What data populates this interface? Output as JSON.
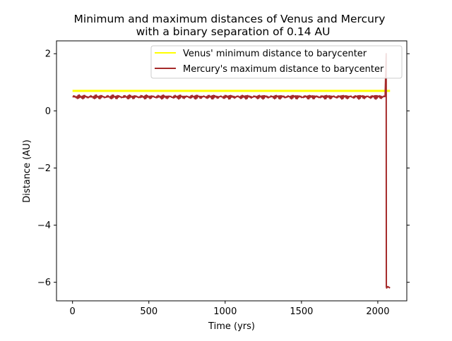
{
  "chart_data": {
    "type": "line",
    "title_lines": [
      "Minimum and maximum distances of Venus and Mercury",
      "with a binary separation of 0.14 AU"
    ],
    "xlabel": "Time (yrs)",
    "ylabel": "Distance (AU)",
    "xlim": [
      -105,
      2190
    ],
    "ylim": [
      -6.65,
      2.45
    ],
    "xticks": [
      0,
      500,
      1000,
      1500,
      2000
    ],
    "yticks": [
      2,
      0,
      -2,
      -4,
      -6
    ],
    "xtick_labels": [
      "0",
      "500",
      "1000",
      "1500",
      "2000"
    ],
    "ytick_labels": [
      "2",
      "0",
      "−2",
      "−4",
      "−6"
    ],
    "legend_position": "upper right",
    "grid": false,
    "series": [
      {
        "name": "Venus' minimum distance to barycenter",
        "color": "#ffff00",
        "x": [
          0,
          500,
          1000,
          1500,
          2000,
          2080
        ],
        "y": [
          0.7,
          0.7,
          0.7,
          0.7,
          0.7,
          0.7
        ]
      },
      {
        "name": "Mercury's maximum distance to barycenter",
        "color": "#a52a2a",
        "x": [
          0,
          200,
          400,
          600,
          800,
          1000,
          1200,
          1400,
          1600,
          1800,
          1900,
          2050,
          2055,
          2056,
          2058,
          2065,
          2080
        ],
        "y": [
          0.5,
          0.48,
          0.5,
          0.49,
          0.47,
          0.5,
          0.49,
          0.5,
          0.48,
          0.5,
          0.49,
          0.5,
          2.0,
          -6.15,
          -6.2,
          -6.15,
          -6.2
        ]
      }
    ]
  }
}
